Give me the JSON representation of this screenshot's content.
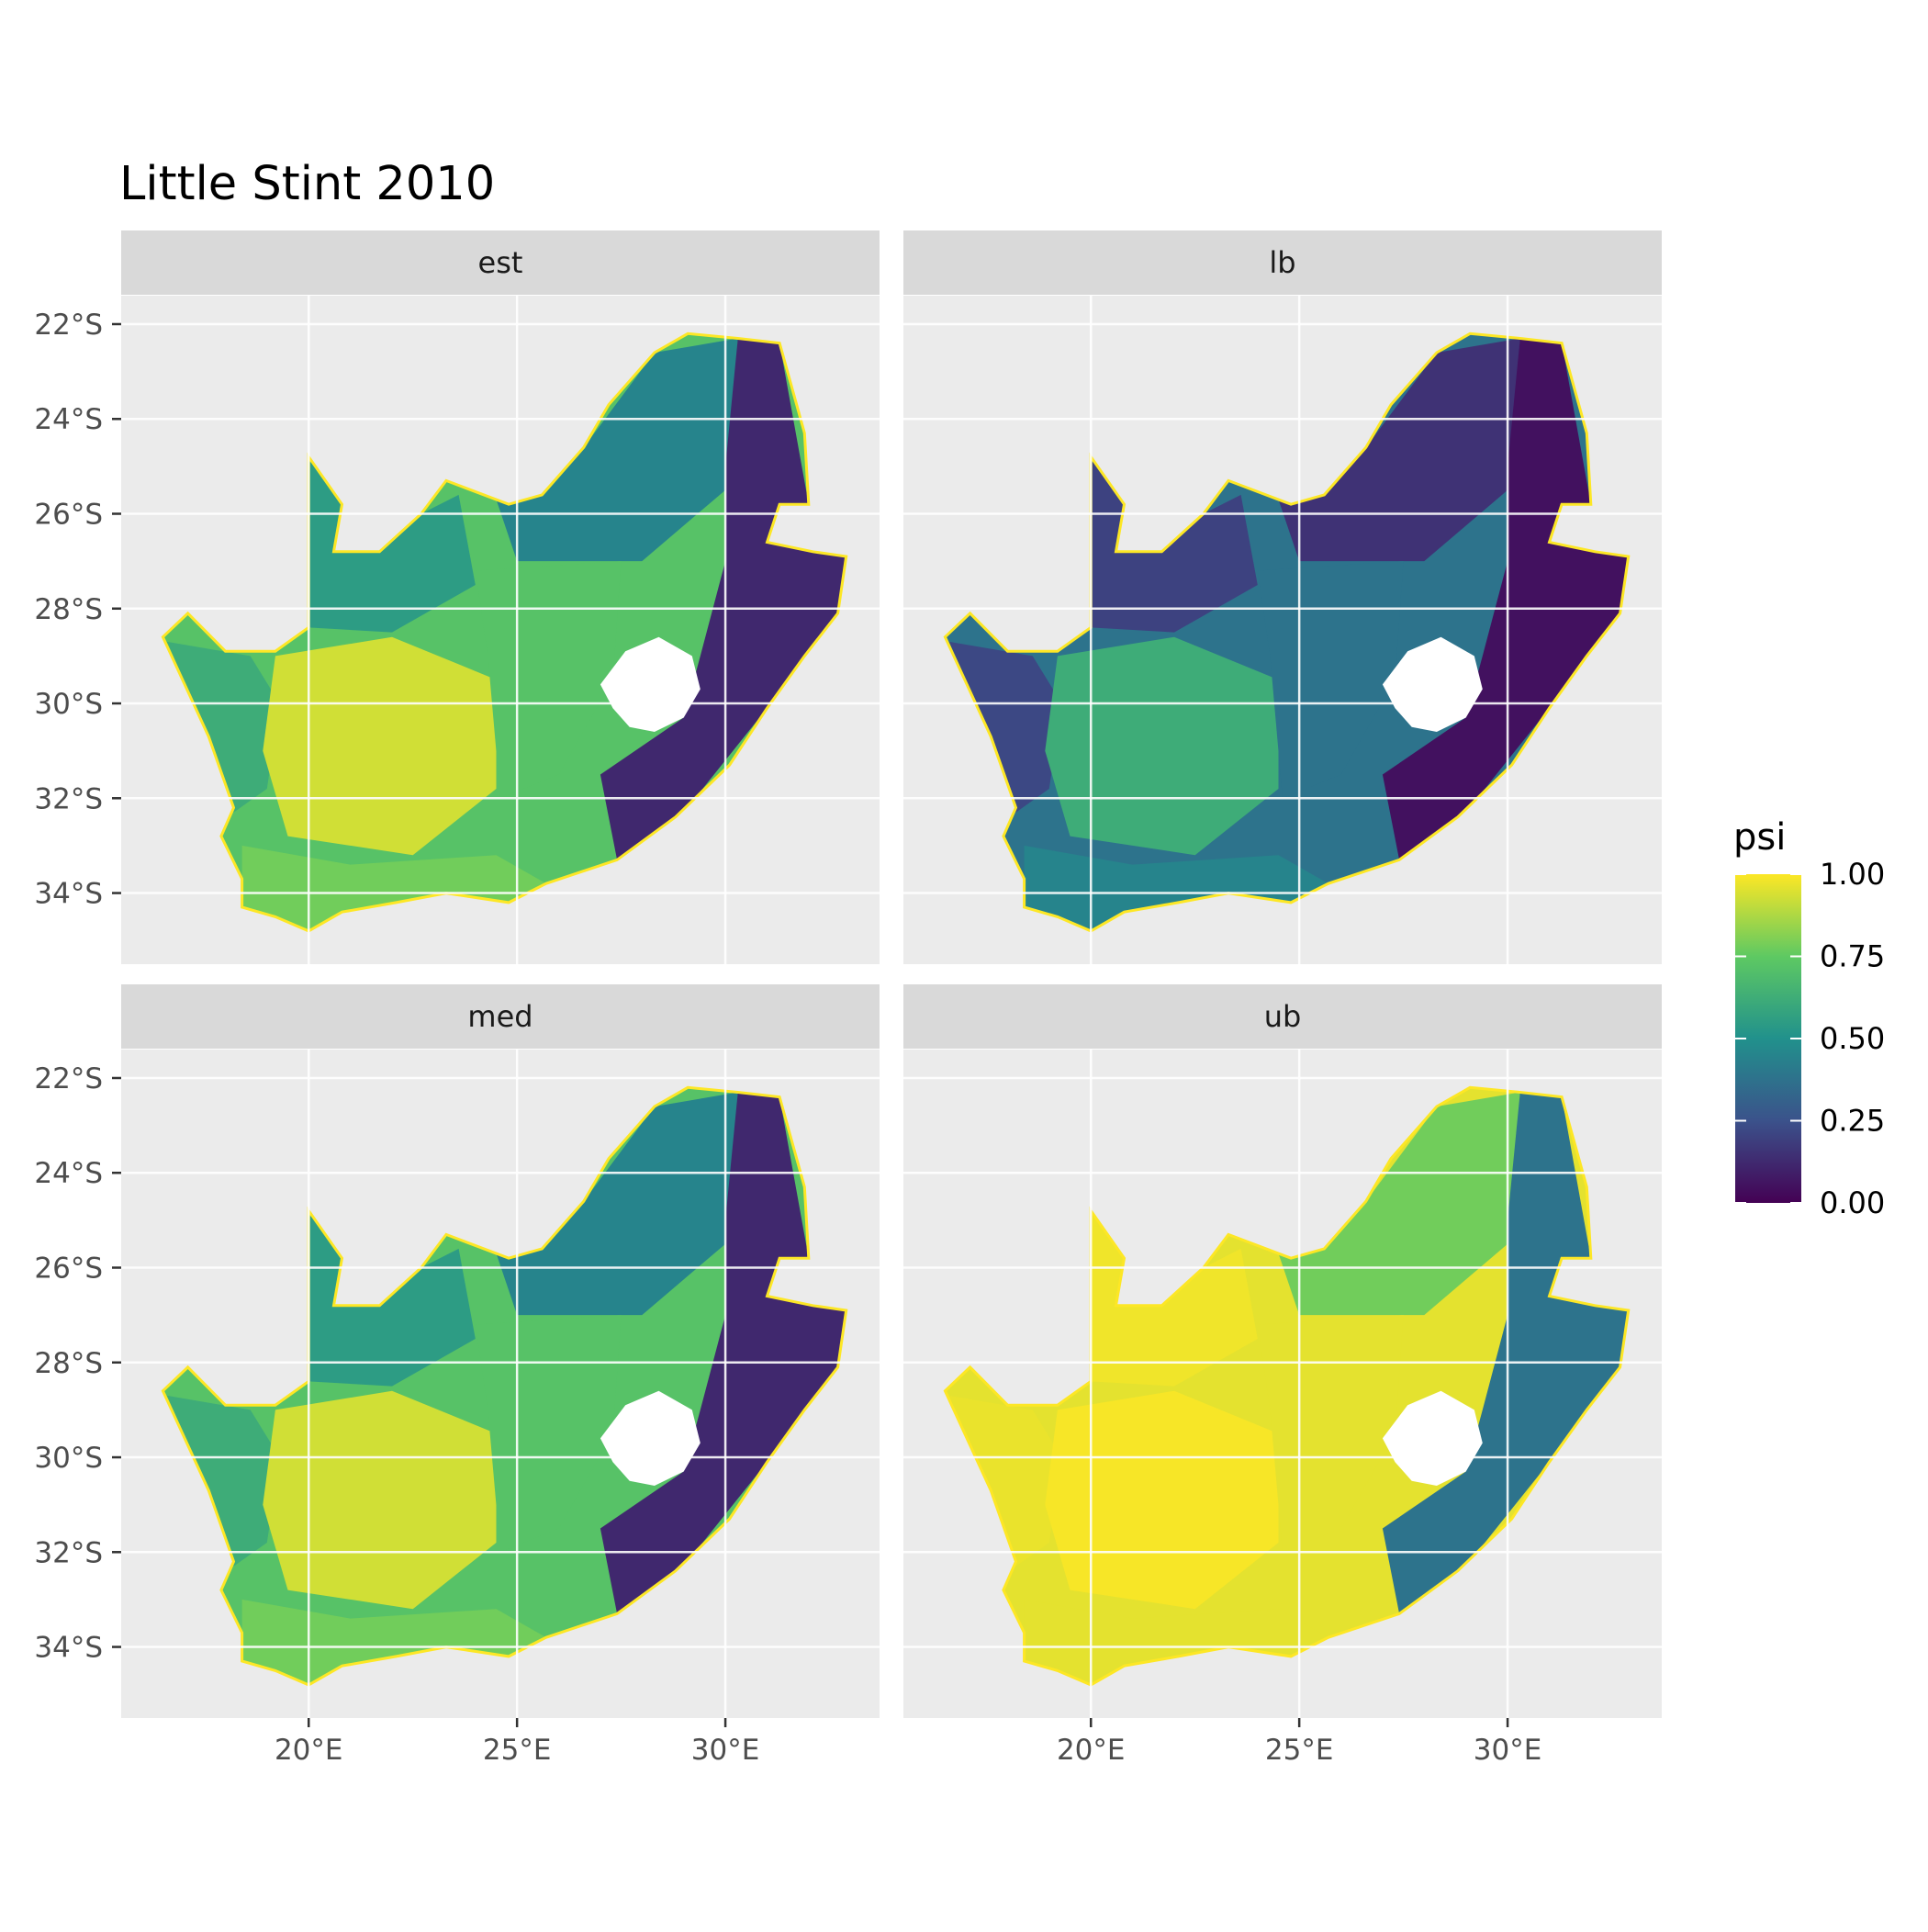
{
  "chart_data": {
    "type": "map",
    "title": "Little Stint 2010",
    "facets": [
      "est",
      "lb",
      "med",
      "ub"
    ],
    "x_ticks": [
      {
        "value": 20,
        "label": "20°E"
      },
      {
        "value": 25,
        "label": "25°E"
      },
      {
        "value": 30,
        "label": "30°E"
      }
    ],
    "y_ticks": [
      {
        "value": -22,
        "label": "22°S"
      },
      {
        "value": -24,
        "label": "24°S"
      },
      {
        "value": -26,
        "label": "26°S"
      },
      {
        "value": -28,
        "label": "28°S"
      },
      {
        "value": -30,
        "label": "30°S"
      },
      {
        "value": -32,
        "label": "32°S"
      },
      {
        "value": -34,
        "label": "34°S"
      }
    ],
    "xlim": [
      15.5,
      33.7
    ],
    "ylim": [
      -35.5,
      -21.4
    ],
    "legend": {
      "title": "psi",
      "position": "right",
      "scale": "viridis",
      "range": [
        0,
        1
      ],
      "breaks": [
        {
          "value": 1.0,
          "label": "1.00"
        },
        {
          "value": 0.75,
          "label": "0.75"
        },
        {
          "value": 0.5,
          "label": "0.50"
        },
        {
          "value": 0.25,
          "label": "0.25"
        },
        {
          "value": 0.0,
          "label": "0.00"
        }
      ],
      "colors": [
        "#440154",
        "#3b528b",
        "#21918c",
        "#5ec962",
        "#fde725"
      ]
    },
    "panel_background": "#ebebeb",
    "strip_background": "#d9d9d9",
    "grid": true
  }
}
